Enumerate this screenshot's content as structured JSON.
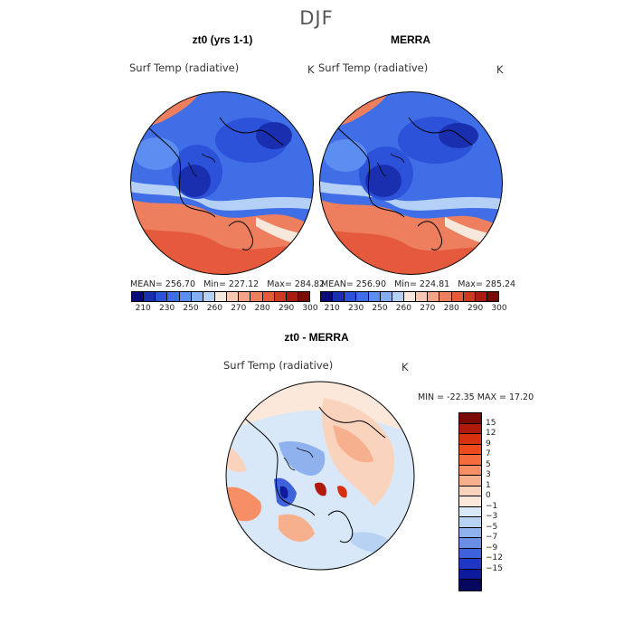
{
  "season": "DJF",
  "panels": [
    {
      "title": "zt0 (yrs 1-1)",
      "variable": "Surf Temp (radiative)",
      "unit": "K",
      "mean": "MEAN= 256.70",
      "min": "Min= 227.12",
      "max": "Max= 284.82"
    },
    {
      "title": "MERRA",
      "variable": "Surf Temp (radiative)",
      "unit": "K",
      "mean": "MEAN= 256.90",
      "min": "Min= 224.81",
      "max": "Max= 285.24"
    }
  ],
  "top_colorbar": {
    "ticks": [
      "210",
      "230",
      "250",
      "260",
      "270",
      "280",
      "290",
      "300"
    ],
    "colors": [
      "#0a0a7a",
      "#1a2fb0",
      "#2b52d8",
      "#3f6ee6",
      "#5b8ef0",
      "#85aef2",
      "#b5d0f6",
      "#f6e9dc",
      "#f8c8b0",
      "#f4a486",
      "#ee7f5e",
      "#e55a3c",
      "#cc3a22",
      "#a81d10",
      "#7a0a05"
    ]
  },
  "diff": {
    "title": "zt0 - MERRA",
    "variable": "Surf Temp (radiative)",
    "unit": "K",
    "minmax": "MIN = -22.35 MAX =  17.20",
    "ticks": [
      "15",
      "12",
      "9",
      "7",
      "5",
      "3",
      "1",
      "0",
      "−1",
      "−3",
      "−5",
      "−7",
      "−9",
      "−12",
      "−15"
    ],
    "colors": [
      "#7a0a05",
      "#b01a0a",
      "#d8310f",
      "#ee4a1c",
      "#f46c3e",
      "#f68e66",
      "#f7b08e",
      "#fad3bd",
      "#fbe8da",
      "#d8e8f8",
      "#b8d2f4",
      "#8fb2ee",
      "#6a8ee6",
      "#3e62dc",
      "#2037c6",
      "#0e1a9c",
      "#05085e"
    ]
  },
  "colors": {
    "cold": "#3f6ee6",
    "warm": "#ee7f5e",
    "land_outline": "#000000"
  }
}
